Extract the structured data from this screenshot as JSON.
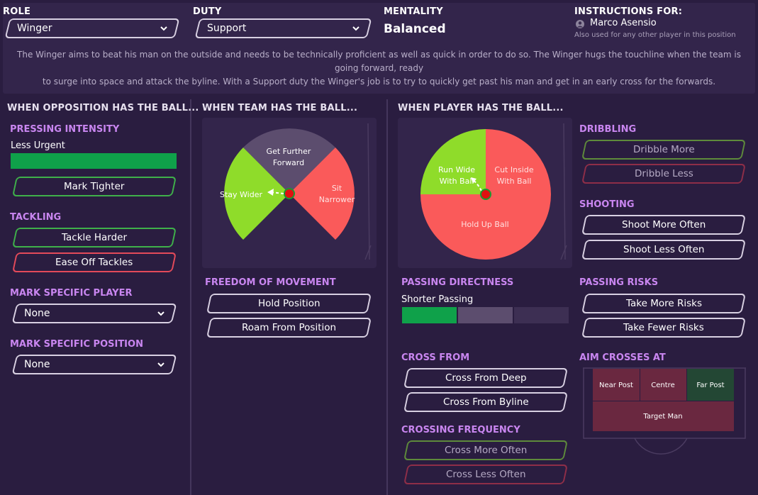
{
  "header": {
    "role_label": "ROLE",
    "role_value": "Winger",
    "duty_label": "DUTY",
    "duty_value": "Support",
    "mentality_label": "MENTALITY",
    "mentality_value": "Balanced",
    "instructions_label": "INSTRUCTIONS FOR:",
    "player_name": "Marco Asensio",
    "also_used": "Also used for any other player in this position",
    "description_line1": "The Winger aims to beat his man on the outside and needs to be technically proficient as well as quick in order to do so. The Winger hugs the touchline when the team is going forward, ready",
    "description_line2": "to surge into space and attack the byline. With a Support duty the Winger's job is to try to quickly get past his man and get in an early cross for the forwards."
  },
  "opposition": {
    "title": "WHEN OPPOSITION HAS THE BALL...",
    "pressing_title": "PRESSING INTENSITY",
    "pressing_value": "Less Urgent",
    "pressing_level": 1.0,
    "mark_tighter": "Mark Tighter",
    "tackling_title": "TACKLING",
    "tackle_harder": "Tackle Harder",
    "ease_off": "Ease Off Tackles",
    "mark_player_title": "MARK SPECIFIC PLAYER",
    "mark_player_value": "None",
    "mark_position_title": "MARK SPECIFIC POSITION",
    "mark_position_value": "None"
  },
  "team": {
    "title": "WHEN TEAM HAS THE BALL...",
    "wheel_top": [
      "Get Further",
      "Forward"
    ],
    "wheel_left": "Stay Wider",
    "wheel_right": [
      "Sit",
      "Narrower"
    ],
    "freedom_title": "FREEDOM OF MOVEMENT",
    "hold_position": "Hold Position",
    "roam": "Roam From Position"
  },
  "player": {
    "title": "WHEN PLAYER HAS THE BALL...",
    "wheel_left": [
      "Run Wide",
      "With Ball"
    ],
    "wheel_right": [
      "Cut Inside",
      "With Ball"
    ],
    "wheel_bottom": "Hold Up Ball",
    "passing_dir_title": "PASSING DIRECTNESS",
    "passing_dir_value": "Shorter Passing",
    "passing_dir_level": 1,
    "cross_from_title": "CROSS FROM",
    "cross_deep": "Cross From Deep",
    "cross_byline": "Cross From Byline",
    "crossing_freq_title": "CROSSING FREQUENCY",
    "cross_more": "Cross More Often",
    "cross_less": "Cross Less Often",
    "dribbling_title": "DRIBBLING",
    "dribble_more": "Dribble More",
    "dribble_less": "Dribble Less",
    "shooting_title": "SHOOTING",
    "shoot_more": "Shoot More Often",
    "shoot_less": "Shoot Less Often",
    "passing_risks_title": "PASSING RISKS",
    "more_risks": "Take More Risks",
    "fewer_risks": "Take Fewer Risks",
    "aim_title": "AIM CROSSES AT",
    "aim_near": "Near Post",
    "aim_centre": "Centre",
    "aim_far": "Far Post",
    "aim_target": "Target Man"
  },
  "colors": {
    "accent_purple": "#c986f0",
    "green": "#0fa14a",
    "lime": "#8fdc2a",
    "red": "#fa5a5a",
    "grey_segment": "#5c4d6e"
  }
}
